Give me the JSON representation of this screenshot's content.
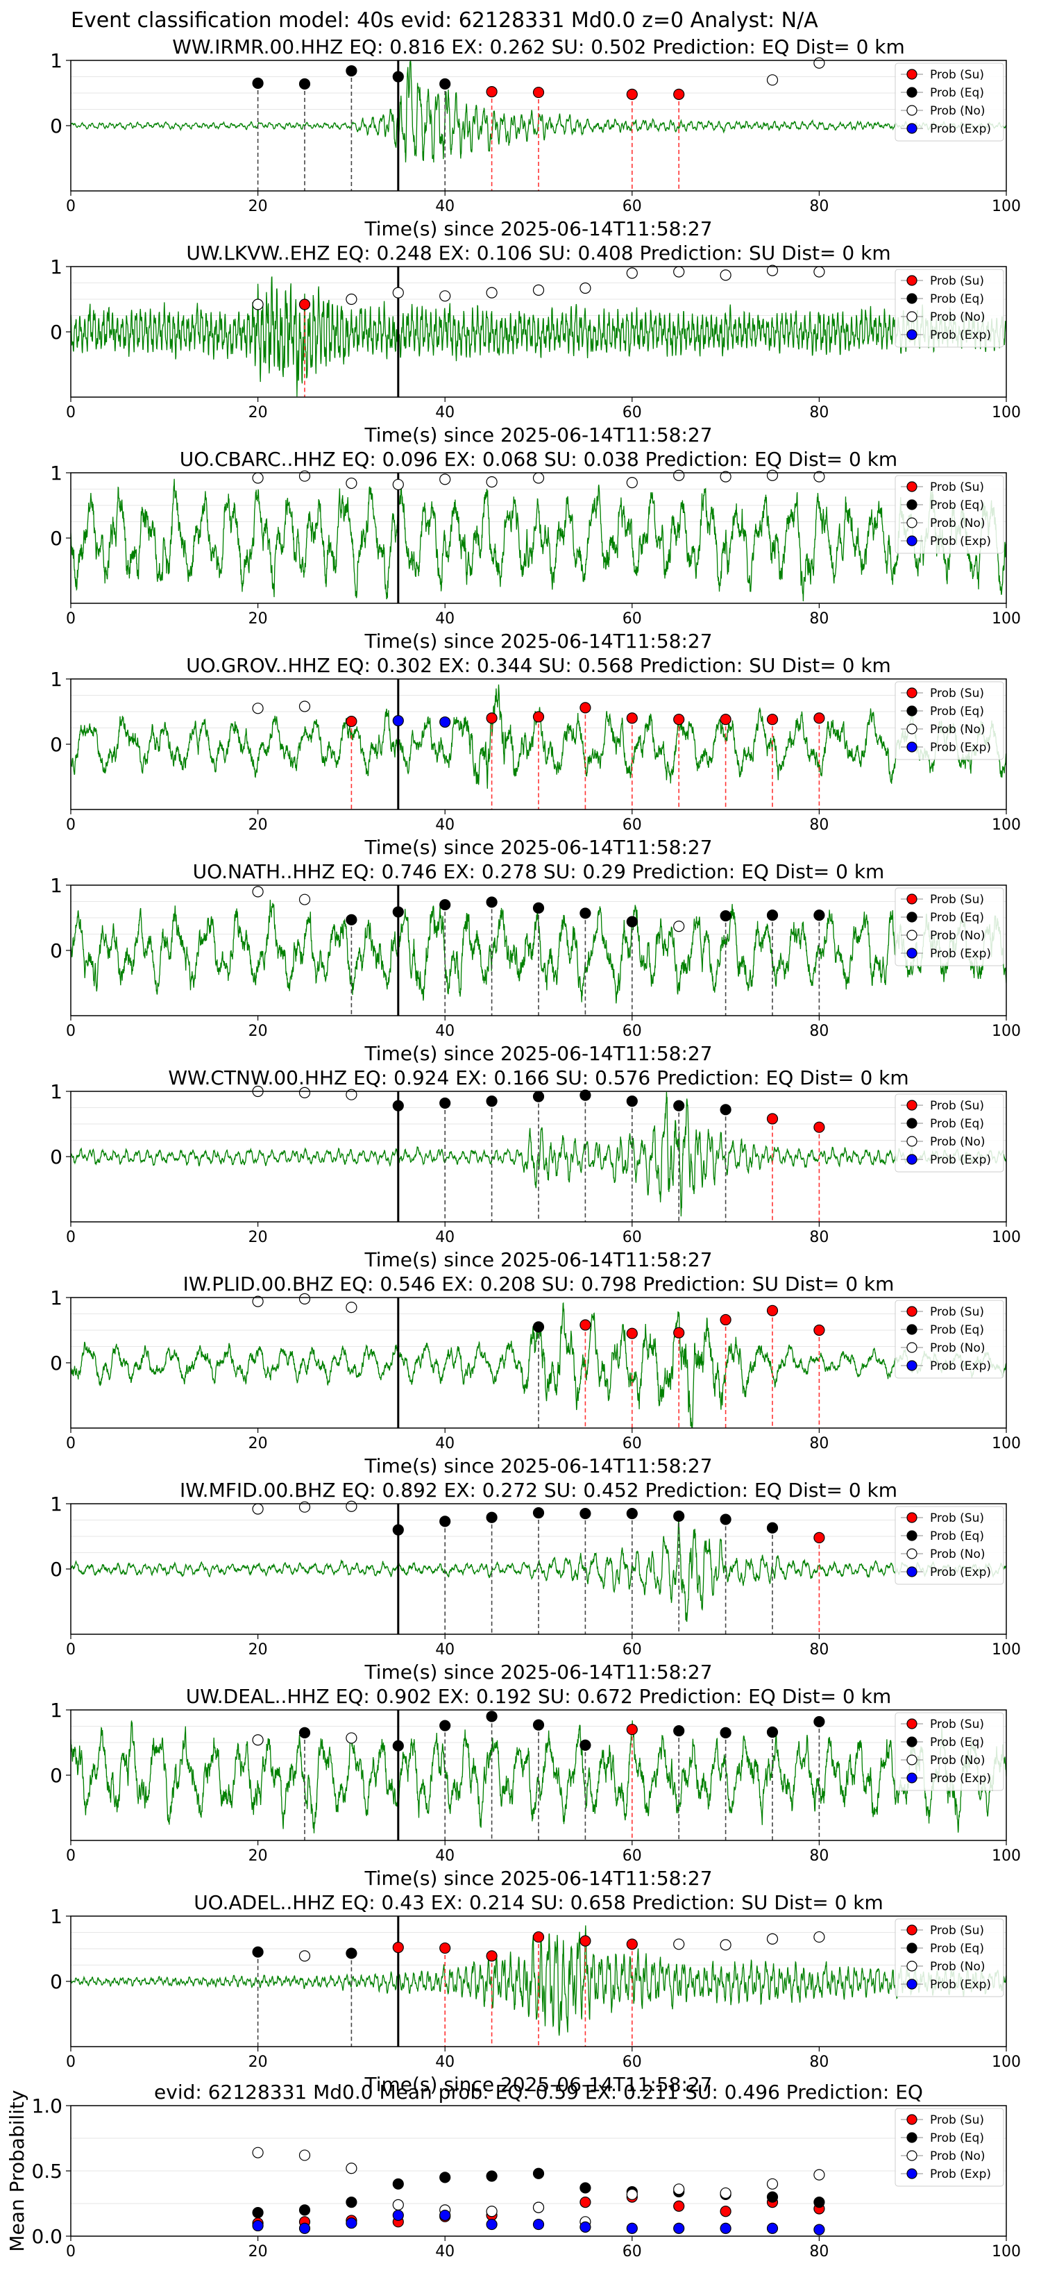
{
  "figure": {
    "suptitle": "Event classification model: 40s evid: 62128331 Md0.0 z=0 Analyst: N/A",
    "xlabel": "Time(s) since 2025-06-14T11:58:27",
    "xticks": [
      0,
      20,
      40,
      60,
      80,
      100
    ],
    "station_yticks": [
      1,
      0
    ],
    "origin_line_time": 35,
    "legend": [
      "Prob (Su)",
      "Prob (Eq)",
      "Prob (No)",
      "Prob (Exp)"
    ],
    "colors": {
      "waveform": "#008000",
      "su": "#ff0000",
      "eq": "#000000",
      "no": "#ffffff",
      "exp": "#0000ff",
      "su_line": "#ff3333",
      "eq_line": "#444444"
    }
  },
  "chart_data": [
    {
      "type": "line",
      "title": "WW.IRMR.00.HHZ   EQ: 0.816  EX: 0.262  SU: 0.502   Prediction: EQ    Dist= 0 km",
      "xlabel": "Time(s) since 2025-06-14T11:58:27",
      "xlim": [
        0,
        100
      ],
      "ylim": [
        -1,
        1
      ],
      "waveform_envelope": [
        [
          0,
          0.05
        ],
        [
          30,
          0.05
        ],
        [
          34,
          0.25
        ],
        [
          36,
          1.0
        ],
        [
          40,
          0.6
        ],
        [
          45,
          0.3
        ],
        [
          55,
          0.12
        ],
        [
          65,
          0.08
        ],
        [
          100,
          0.05
        ]
      ],
      "waveform_period_s": 1.0,
      "points": [
        {
          "t": 20,
          "p": 0.65,
          "class": "eq"
        },
        {
          "t": 25,
          "p": 0.64,
          "class": "eq"
        },
        {
          "t": 30,
          "p": 0.84,
          "class": "eq"
        },
        {
          "t": 35,
          "p": 0.75,
          "class": "eq"
        },
        {
          "t": 40,
          "p": 0.64,
          "class": "eq"
        },
        {
          "t": 45,
          "p": 0.52,
          "class": "su"
        },
        {
          "t": 50,
          "p": 0.51,
          "class": "su"
        },
        {
          "t": 60,
          "p": 0.48,
          "class": "su"
        },
        {
          "t": 65,
          "p": 0.48,
          "class": "su"
        },
        {
          "t": 75,
          "p": 0.7,
          "class": "no"
        },
        {
          "t": 80,
          "p": 0.96,
          "class": "no"
        }
      ]
    },
    {
      "type": "line",
      "title": "UW.LKVW..EHZ   EQ: 0.248  EX: 0.106  SU: 0.408   Prediction: SU    Dist= 0 km",
      "xlabel": "Time(s) since 2025-06-14T11:58:27",
      "xlim": [
        0,
        100
      ],
      "ylim": [
        -1,
        1
      ],
      "waveform_envelope": [
        [
          0,
          0.35
        ],
        [
          19,
          0.4
        ],
        [
          20,
          0.85
        ],
        [
          25,
          0.85
        ],
        [
          30,
          0.4
        ],
        [
          100,
          0.3
        ]
      ],
      "waveform_period_s": 0.5,
      "points": [
        {
          "t": 20,
          "p": 0.42,
          "class": "no"
        },
        {
          "t": 25,
          "p": 0.42,
          "class": "su"
        },
        {
          "t": 30,
          "p": 0.5,
          "class": "no"
        },
        {
          "t": 35,
          "p": 0.6,
          "class": "no"
        },
        {
          "t": 40,
          "p": 0.55,
          "class": "no"
        },
        {
          "t": 45,
          "p": 0.6,
          "class": "no"
        },
        {
          "t": 50,
          "p": 0.64,
          "class": "no"
        },
        {
          "t": 55,
          "p": 0.67,
          "class": "no"
        },
        {
          "t": 60,
          "p": 0.9,
          "class": "no"
        },
        {
          "t": 65,
          "p": 0.92,
          "class": "no"
        },
        {
          "t": 70,
          "p": 0.87,
          "class": "no"
        },
        {
          "t": 75,
          "p": 0.94,
          "class": "no"
        },
        {
          "t": 80,
          "p": 0.92,
          "class": "no"
        }
      ]
    },
    {
      "type": "line",
      "title": "UO.CBARC..HHZ   EQ: 0.096  EX: 0.068  SU: 0.038   Prediction: EQ    Dist= 0 km",
      "xlabel": "Time(s) since 2025-06-14T11:58:27",
      "xlim": [
        0,
        100
      ],
      "ylim": [
        -1,
        1
      ],
      "waveform_envelope": [
        [
          0,
          0.75
        ],
        [
          100,
          0.75
        ]
      ],
      "waveform_period_s": 3.0,
      "points": [
        {
          "t": 20,
          "p": 0.92,
          "class": "no"
        },
        {
          "t": 25,
          "p": 0.95,
          "class": "no"
        },
        {
          "t": 30,
          "p": 0.84,
          "class": "no"
        },
        {
          "t": 35,
          "p": 0.82,
          "class": "no"
        },
        {
          "t": 40,
          "p": 0.9,
          "class": "no"
        },
        {
          "t": 45,
          "p": 0.86,
          "class": "no"
        },
        {
          "t": 50,
          "p": 0.92,
          "class": "no"
        },
        {
          "t": 60,
          "p": 0.85,
          "class": "no"
        },
        {
          "t": 65,
          "p": 0.96,
          "class": "no"
        },
        {
          "t": 70,
          "p": 0.94,
          "class": "no"
        },
        {
          "t": 75,
          "p": 0.96,
          "class": "no"
        },
        {
          "t": 80,
          "p": 0.94,
          "class": "no"
        }
      ]
    },
    {
      "type": "line",
      "title": "UO.GROV..HHZ   EQ: 0.302  EX: 0.344  SU: 0.568   Prediction: SU    Dist= 0 km",
      "xlabel": "Time(s) since 2025-06-14T11:58:27",
      "xlim": [
        0,
        100
      ],
      "ylim": [
        -1,
        1
      ],
      "waveform_envelope": [
        [
          0,
          0.45
        ],
        [
          40,
          0.45
        ],
        [
          45,
          0.9
        ],
        [
          50,
          0.5
        ],
        [
          100,
          0.45
        ]
      ],
      "waveform_period_s": 4.0,
      "points": [
        {
          "t": 20,
          "p": 0.55,
          "class": "no"
        },
        {
          "t": 25,
          "p": 0.58,
          "class": "no"
        },
        {
          "t": 30,
          "p": 0.35,
          "class": "su"
        },
        {
          "t": 35,
          "p": 0.36,
          "class": "exp"
        },
        {
          "t": 40,
          "p": 0.34,
          "class": "exp"
        },
        {
          "t": 45,
          "p": 0.4,
          "class": "su"
        },
        {
          "t": 50,
          "p": 0.42,
          "class": "su"
        },
        {
          "t": 55,
          "p": 0.56,
          "class": "su"
        },
        {
          "t": 60,
          "p": 0.4,
          "class": "su"
        },
        {
          "t": 65,
          "p": 0.38,
          "class": "su"
        },
        {
          "t": 70,
          "p": 0.38,
          "class": "su"
        },
        {
          "t": 75,
          "p": 0.38,
          "class": "su"
        },
        {
          "t": 80,
          "p": 0.4,
          "class": "su"
        }
      ]
    },
    {
      "type": "line",
      "title": "UO.NATH..HHZ   EQ: 0.746  EX: 0.278  SU: 0.29   Prediction: EQ    Dist= 0 km",
      "xlabel": "Time(s) since 2025-06-14T11:58:27",
      "xlim": [
        0,
        100
      ],
      "ylim": [
        -1,
        1
      ],
      "waveform_envelope": [
        [
          0,
          0.6
        ],
        [
          35,
          0.6
        ],
        [
          38,
          0.85
        ],
        [
          45,
          0.7
        ],
        [
          100,
          0.55
        ]
      ],
      "waveform_period_s": 3.5,
      "points": [
        {
          "t": 20,
          "p": 0.9,
          "class": "no"
        },
        {
          "t": 25,
          "p": 0.78,
          "class": "no"
        },
        {
          "t": 30,
          "p": 0.47,
          "class": "eq"
        },
        {
          "t": 35,
          "p": 0.59,
          "class": "eq"
        },
        {
          "t": 40,
          "p": 0.7,
          "class": "eq"
        },
        {
          "t": 45,
          "p": 0.74,
          "class": "eq"
        },
        {
          "t": 50,
          "p": 0.65,
          "class": "eq"
        },
        {
          "t": 55,
          "p": 0.57,
          "class": "eq"
        },
        {
          "t": 60,
          "p": 0.44,
          "class": "eq"
        },
        {
          "t": 65,
          "p": 0.37,
          "class": "no"
        },
        {
          "t": 70,
          "p": 0.53,
          "class": "eq"
        },
        {
          "t": 75,
          "p": 0.54,
          "class": "eq"
        },
        {
          "t": 80,
          "p": 0.54,
          "class": "eq"
        }
      ]
    },
    {
      "type": "line",
      "title": "WW.CTNW.00.HHZ   EQ: 0.924  EX: 0.166  SU: 0.576   Prediction: EQ    Dist= 0 km",
      "xlabel": "Time(s) since 2025-06-14T11:58:27",
      "xlim": [
        0,
        100
      ],
      "ylim": [
        -1,
        1
      ],
      "waveform_envelope": [
        [
          0,
          0.12
        ],
        [
          48,
          0.12
        ],
        [
          49,
          0.45
        ],
        [
          56,
          0.25
        ],
        [
          62,
          0.5
        ],
        [
          64,
          1.0
        ],
        [
          68,
          0.45
        ],
        [
          75,
          0.15
        ],
        [
          100,
          0.1
        ]
      ],
      "waveform_period_s": 1.2,
      "points": [
        {
          "t": 20,
          "p": 1.0,
          "class": "no"
        },
        {
          "t": 25,
          "p": 0.98,
          "class": "no"
        },
        {
          "t": 30,
          "p": 0.95,
          "class": "no"
        },
        {
          "t": 35,
          "p": 0.78,
          "class": "eq"
        },
        {
          "t": 40,
          "p": 0.82,
          "class": "eq"
        },
        {
          "t": 45,
          "p": 0.85,
          "class": "eq"
        },
        {
          "t": 50,
          "p": 0.92,
          "class": "eq"
        },
        {
          "t": 55,
          "p": 0.94,
          "class": "eq"
        },
        {
          "t": 60,
          "p": 0.85,
          "class": "eq"
        },
        {
          "t": 65,
          "p": 0.78,
          "class": "eq"
        },
        {
          "t": 70,
          "p": 0.72,
          "class": "eq"
        },
        {
          "t": 75,
          "p": 0.58,
          "class": "su"
        },
        {
          "t": 80,
          "p": 0.45,
          "class": "su"
        }
      ]
    },
    {
      "type": "line",
      "title": "IW.PLID.00.BHZ   EQ: 0.546  EX: 0.208  SU: 0.798   Prediction: SU    Dist= 0 km",
      "xlabel": "Time(s) since 2025-06-14T11:58:27",
      "xlim": [
        0,
        100
      ],
      "ylim": [
        -1,
        1
      ],
      "waveform_envelope": [
        [
          0,
          0.3
        ],
        [
          48,
          0.3
        ],
        [
          49,
          0.9
        ],
        [
          55,
          0.6
        ],
        [
          60,
          0.6
        ],
        [
          66,
          1.0
        ],
        [
          72,
          0.45
        ],
        [
          80,
          0.2
        ],
        [
          100,
          0.2
        ]
      ],
      "waveform_period_s": 3.0,
      "points": [
        {
          "t": 20,
          "p": 0.94,
          "class": "no"
        },
        {
          "t": 25,
          "p": 0.98,
          "class": "no"
        },
        {
          "t": 30,
          "p": 0.85,
          "class": "no"
        },
        {
          "t": 50,
          "p": 0.55,
          "class": "eq"
        },
        {
          "t": 55,
          "p": 0.58,
          "class": "su"
        },
        {
          "t": 60,
          "p": 0.45,
          "class": "su"
        },
        {
          "t": 65,
          "p": 0.46,
          "class": "su"
        },
        {
          "t": 70,
          "p": 0.66,
          "class": "su"
        },
        {
          "t": 75,
          "p": 0.8,
          "class": "su"
        },
        {
          "t": 80,
          "p": 0.5,
          "class": "su"
        }
      ]
    },
    {
      "type": "line",
      "title": "IW.MFID.00.BHZ   EQ: 0.892  EX: 0.272  SU: 0.452   Prediction: EQ    Dist= 0 km",
      "xlabel": "Time(s) since 2025-06-14T11:58:27",
      "xlim": [
        0,
        100
      ],
      "ylim": [
        -1,
        1
      ],
      "waveform_envelope": [
        [
          0,
          0.1
        ],
        [
          48,
          0.1
        ],
        [
          52,
          0.2
        ],
        [
          62,
          0.35
        ],
        [
          66,
          0.85
        ],
        [
          70,
          0.3
        ],
        [
          80,
          0.12
        ],
        [
          100,
          0.1
        ]
      ],
      "waveform_period_s": 1.5,
      "points": [
        {
          "t": 20,
          "p": 0.92,
          "class": "no"
        },
        {
          "t": 25,
          "p": 0.95,
          "class": "no"
        },
        {
          "t": 30,
          "p": 0.96,
          "class": "no"
        },
        {
          "t": 35,
          "p": 0.6,
          "class": "eq"
        },
        {
          "t": 40,
          "p": 0.73,
          "class": "eq"
        },
        {
          "t": 45,
          "p": 0.79,
          "class": "eq"
        },
        {
          "t": 50,
          "p": 0.86,
          "class": "eq"
        },
        {
          "t": 55,
          "p": 0.85,
          "class": "eq"
        },
        {
          "t": 60,
          "p": 0.85,
          "class": "eq"
        },
        {
          "t": 65,
          "p": 0.81,
          "class": "eq"
        },
        {
          "t": 70,
          "p": 0.76,
          "class": "eq"
        },
        {
          "t": 75,
          "p": 0.63,
          "class": "eq"
        },
        {
          "t": 80,
          "p": 0.48,
          "class": "su"
        }
      ]
    },
    {
      "type": "line",
      "title": "UW.DEAL..HHZ   EQ: 0.902  EX: 0.192  SU: 0.672   Prediction: EQ    Dist= 0 km",
      "xlabel": "Time(s) since 2025-06-14T11:58:27",
      "xlim": [
        0,
        100
      ],
      "ylim": [
        -1,
        1
      ],
      "waveform_envelope": [
        [
          0,
          0.65
        ],
        [
          100,
          0.65
        ]
      ],
      "waveform_period_s": 3.0,
      "points": [
        {
          "t": 20,
          "p": 0.54,
          "class": "no"
        },
        {
          "t": 25,
          "p": 0.65,
          "class": "eq"
        },
        {
          "t": 30,
          "p": 0.57,
          "class": "no"
        },
        {
          "t": 35,
          "p": 0.45,
          "class": "eq"
        },
        {
          "t": 40,
          "p": 0.76,
          "class": "eq"
        },
        {
          "t": 45,
          "p": 0.9,
          "class": "eq"
        },
        {
          "t": 50,
          "p": 0.77,
          "class": "eq"
        },
        {
          "t": 55,
          "p": 0.46,
          "class": "eq"
        },
        {
          "t": 60,
          "p": 0.7,
          "class": "su"
        },
        {
          "t": 65,
          "p": 0.68,
          "class": "eq"
        },
        {
          "t": 70,
          "p": 0.65,
          "class": "eq"
        },
        {
          "t": 75,
          "p": 0.66,
          "class": "eq"
        },
        {
          "t": 80,
          "p": 0.82,
          "class": "eq"
        }
      ]
    },
    {
      "type": "line",
      "title": "UO.ADEL..HHZ   EQ: 0.43  EX: 0.214  SU: 0.658   Prediction: SU    Dist= 0 km",
      "xlabel": "Time(s) since 2025-06-14T11:58:27",
      "xlim": [
        0,
        100
      ],
      "ylim": [
        -1,
        1
      ],
      "waveform_envelope": [
        [
          0,
          0.06
        ],
        [
          30,
          0.1
        ],
        [
          40,
          0.22
        ],
        [
          48,
          0.5
        ],
        [
          53,
          0.95
        ],
        [
          56,
          0.55
        ],
        [
          65,
          0.35
        ],
        [
          100,
          0.2
        ]
      ],
      "waveform_period_s": 0.8,
      "points": [
        {
          "t": 20,
          "p": 0.45,
          "class": "eq"
        },
        {
          "t": 25,
          "p": 0.39,
          "class": "no"
        },
        {
          "t": 30,
          "p": 0.43,
          "class": "eq"
        },
        {
          "t": 35,
          "p": 0.52,
          "class": "su"
        },
        {
          "t": 40,
          "p": 0.51,
          "class": "su"
        },
        {
          "t": 45,
          "p": 0.39,
          "class": "su"
        },
        {
          "t": 50,
          "p": 0.68,
          "class": "su"
        },
        {
          "t": 55,
          "p": 0.62,
          "class": "su"
        },
        {
          "t": 60,
          "p": 0.57,
          "class": "su"
        },
        {
          "t": 65,
          "p": 0.57,
          "class": "no"
        },
        {
          "t": 70,
          "p": 0.56,
          "class": "no"
        },
        {
          "t": 75,
          "p": 0.65,
          "class": "no"
        },
        {
          "t": 80,
          "p": 0.68,
          "class": "no"
        }
      ]
    },
    {
      "type": "scatter",
      "title": "evid: 62128331  Md0.0   Mean prob:   EQ: 0.59  EX: 0.211  SU: 0.496   Prediction: EQ",
      "ylabel": "Mean Probability",
      "xlim": [
        0,
        100
      ],
      "ylim": [
        0,
        1
      ],
      "yticks": [
        1.0,
        0.5,
        0.0
      ],
      "x": [
        20,
        25,
        30,
        35,
        40,
        45,
        50,
        55,
        60,
        65,
        70,
        75,
        80
      ],
      "series": [
        {
          "name": "Prob (Su)",
          "class": "su",
          "values": [
            0.1,
            0.11,
            0.12,
            0.11,
            0.15,
            0.16,
            0.22,
            0.26,
            0.3,
            0.23,
            0.19,
            0.26,
            0.21
          ]
        },
        {
          "name": "Prob (Eq)",
          "class": "eq",
          "values": [
            0.18,
            0.2,
            0.26,
            0.4,
            0.45,
            0.46,
            0.48,
            0.37,
            0.34,
            0.34,
            0.32,
            0.3,
            0.26
          ]
        },
        {
          "name": "Prob (No)",
          "class": "no",
          "values": [
            0.64,
            0.62,
            0.52,
            0.24,
            0.2,
            0.19,
            0.22,
            0.11,
            0.32,
            0.36,
            0.33,
            0.4,
            0.47
          ]
        },
        {
          "name": "Prob (Exp)",
          "class": "exp",
          "values": [
            0.08,
            0.06,
            0.1,
            0.16,
            0.16,
            0.09,
            0.09,
            0.07,
            0.06,
            0.06,
            0.06,
            0.06,
            0.05
          ]
        }
      ]
    }
  ]
}
